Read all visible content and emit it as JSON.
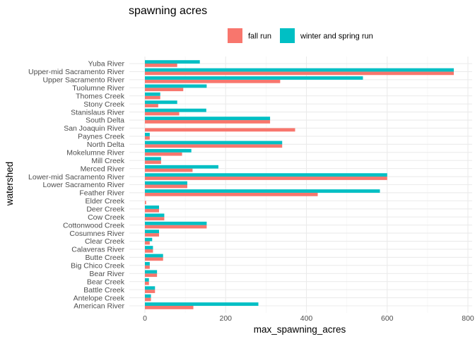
{
  "chart_data": {
    "type": "bar",
    "orientation": "horizontal",
    "title": "spawning acres",
    "xlabel": "max_spawning_acres",
    "ylabel": "watershed",
    "xlim": [
      0,
      800
    ],
    "xticks": [
      0,
      200,
      400,
      600,
      800
    ],
    "grid": true,
    "legend_position": "top",
    "categories": [
      "Yuba River",
      "Upper-mid Sacramento River",
      "Upper Sacramento River",
      "Tuolumne River",
      "Thomes Creek",
      "Stony Creek",
      "Stanislaus River",
      "South Delta",
      "San Joaquin River",
      "Paynes Creek",
      "North Delta",
      "Mokelumne River",
      "Mill Creek",
      "Merced River",
      "Lower-mid Sacramento River",
      "Lower Sacramento River",
      "Feather River",
      "Elder Creek",
      "Deer Creek",
      "Cow Creek",
      "Cottonwood Creek",
      "Cosumnes River",
      "Clear Creek",
      "Calaveras River",
      "Butte Creek",
      "Big Chico Creek",
      "Bear River",
      "Bear Creek",
      "Battle Creek",
      "Antelope Creek",
      "American River"
    ],
    "series": [
      {
        "name": "fall run",
        "color": "#F8766D",
        "values": [
          80,
          765,
          335,
          95,
          38,
          33,
          85,
          310,
          372,
          12,
          340,
          92,
          40,
          118,
          600,
          105,
          428,
          3,
          35,
          48,
          153,
          35,
          12,
          20,
          45,
          12,
          30,
          10,
          25,
          15,
          120
        ]
      },
      {
        "name": "winter and spring run",
        "color": "#00BFC4",
        "values": [
          136,
          765,
          540,
          153,
          38,
          80,
          152,
          310,
          null,
          12,
          340,
          115,
          40,
          182,
          600,
          105,
          582,
          null,
          35,
          48,
          153,
          35,
          18,
          20,
          45,
          12,
          30,
          10,
          25,
          15,
          281
        ]
      }
    ]
  }
}
